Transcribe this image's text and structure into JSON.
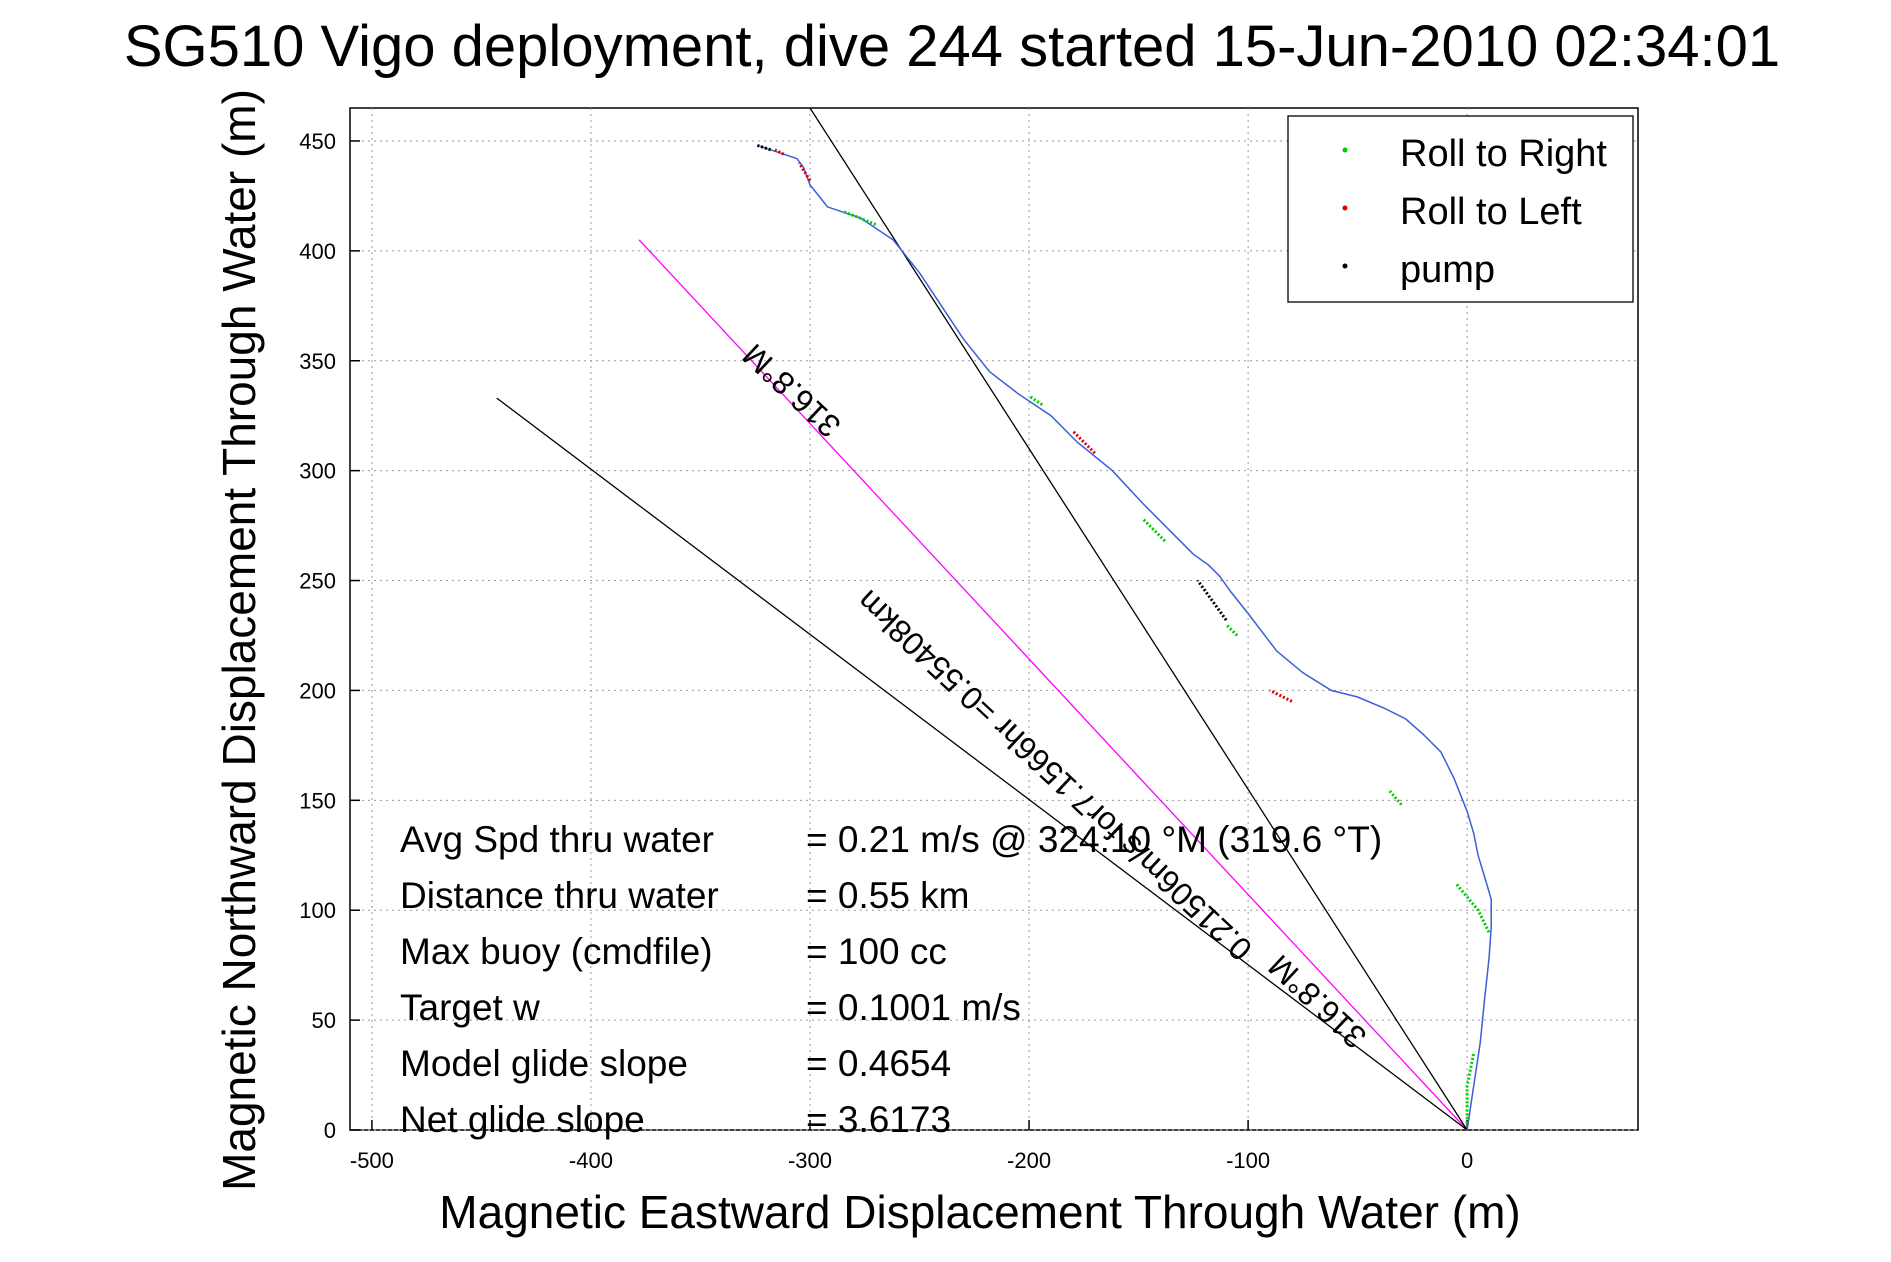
{
  "title": "SG510 Vigo deployment, dive 244 started 15-Jun-2010 02:34:01",
  "chart_data": {
    "type": "line",
    "title": "SG510 Vigo deployment, dive 244 started 15-Jun-2010 02:34:01",
    "xlabel": "Magnetic Eastward Displacement Through Water (m)",
    "ylabel": "Magnetic Northward Displacement Through Water (m)",
    "xlim": [
      -510,
      78
    ],
    "ylim": [
      0,
      465
    ],
    "xticks": [
      -500,
      -400,
      -300,
      -200,
      -100,
      0
    ],
    "yticks": [
      0,
      50,
      100,
      150,
      200,
      250,
      300,
      350,
      400,
      450
    ],
    "grid": true,
    "legend_position": "top-right",
    "legend": [
      {
        "label": "Roll to Right",
        "color": "#00cc00"
      },
      {
        "label": "Roll to Left",
        "color": "#dd0000"
      },
      {
        "label": "pump",
        "color": "#000000"
      }
    ],
    "track": {
      "name": "glider track",
      "color": "#3a5fd6",
      "x": [
        0,
        3,
        6,
        8,
        10,
        11,
        11,
        8,
        5,
        3,
        0,
        -6,
        -12,
        -20,
        -28,
        -38,
        -50,
        -62,
        -75,
        -87,
        -100,
        -108,
        -113,
        -118,
        -125,
        -135,
        -148,
        -162,
        -178,
        -190,
        -205,
        -218,
        -230,
        -240,
        -250,
        -262,
        -277,
        -292,
        -300,
        -303,
        -306,
        -312,
        -318,
        -324
      ],
      "y": [
        0,
        20,
        40,
        60,
        78,
        92,
        105,
        115,
        125,
        135,
        145,
        160,
        172,
        180,
        187,
        192,
        197,
        200,
        208,
        218,
        235,
        245,
        252,
        257,
        262,
        272,
        285,
        300,
        313,
        325,
        335,
        345,
        360,
        375,
        390,
        405,
        415,
        420,
        430,
        438,
        442,
        444,
        446,
        448
      ]
    },
    "roll_right_segments": [
      [
        [
          0,
          3
        ],
        [
          0,
          20
        ],
        [
          3,
          35
        ]
      ],
      [
        [
          10,
          90
        ],
        [
          5,
          100
        ],
        [
          -5,
          112
        ]
      ],
      [
        [
          -30,
          148
        ],
        [
          -36,
          155
        ]
      ],
      [
        [
          -138,
          268
        ],
        [
          -148,
          278
        ]
      ],
      [
        [
          -194,
          330
        ],
        [
          -200,
          334
        ]
      ],
      [
        [
          -270,
          412
        ],
        [
          -285,
          418
        ]
      ],
      [
        [
          -105,
          225
        ],
        [
          -110,
          230
        ]
      ]
    ],
    "roll_left_segments": [
      [
        [
          -80,
          195
        ],
        [
          -90,
          200
        ]
      ],
      [
        [
          -170,
          308
        ],
        [
          -180,
          318
        ]
      ],
      [
        [
          -300,
          432
        ],
        [
          -305,
          440
        ]
      ],
      [
        [
          -312,
          444
        ],
        [
          -316,
          446
        ]
      ]
    ],
    "pump_segments": [
      [
        [
          -110,
          232
        ],
        [
          -123,
          250
        ]
      ],
      [
        [
          -318,
          446
        ],
        [
          -324,
          448
        ]
      ]
    ],
    "reference_lines": [
      {
        "name": "direct course line",
        "color": "#ff00ff",
        "x": [
          0,
          -378
        ],
        "y": [
          0,
          405
        ]
      },
      {
        "name": "heading line",
        "color": "#000000",
        "x": [
          0,
          -300
        ],
        "y": [
          0,
          465
        ]
      },
      {
        "name": "current line",
        "color": "#000000",
        "x": [
          0,
          -443
        ],
        "y": [
          0,
          333
        ]
      }
    ],
    "line_labels": [
      {
        "text": "316.8°M",
        "x": -305,
        "y": 340,
        "angle": 43
      },
      {
        "text": "0.21506m/s for7.1566hr =0.55408km",
        "x": -185,
        "y": 165,
        "angle": 43
      },
      {
        "text": "316.8°M",
        "x": -65,
        "y": 62,
        "angle": 43
      }
    ],
    "stats": [
      {
        "label": "Avg Spd thru water",
        "value": "=  0.21 m/s @ 324.10 °M (319.6 °T)"
      },
      {
        "label": "Distance thru water",
        "value": "=  0.55 km"
      },
      {
        "label": "Max buoy (cmdfile)",
        "value": "= 100 cc"
      },
      {
        "label": "Target w",
        "value": "= 0.1001 m/s"
      },
      {
        "label": "Model glide slope",
        "value": "= 0.4654"
      },
      {
        "label": "Net glide slope",
        "value": "= 3.6173"
      }
    ]
  }
}
